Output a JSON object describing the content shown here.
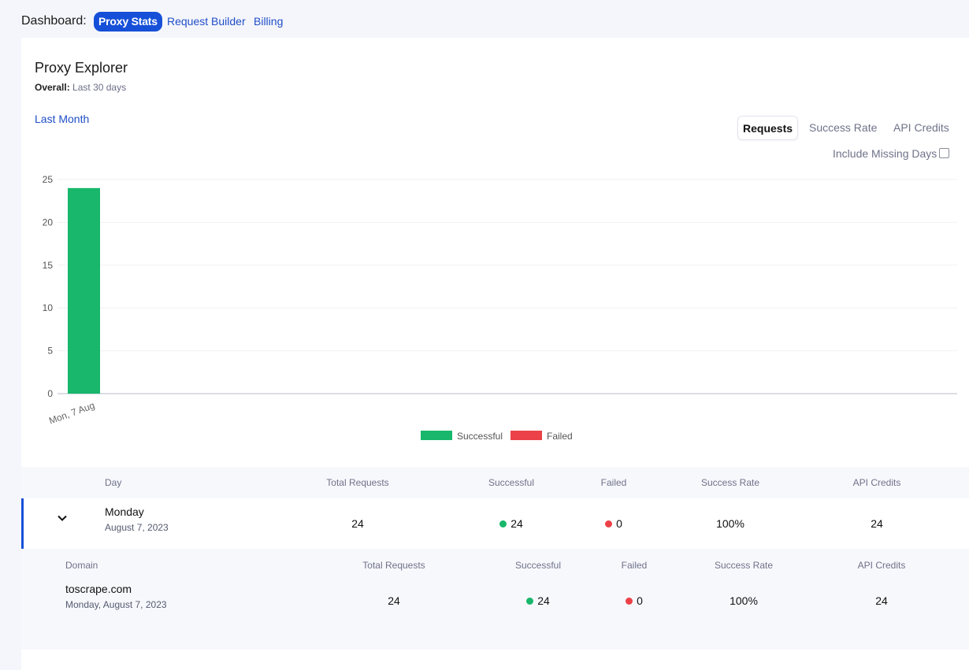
{
  "nav": {
    "label": "Dashboard:",
    "tabs": [
      "Proxy Stats",
      "Request Builder",
      "Billing"
    ]
  },
  "card": {
    "title": "Proxy Explorer",
    "overall_label": "Overall:",
    "overall_value": "Last 30 days",
    "period_link": "Last Month",
    "segments": [
      "Requests",
      "Success Rate",
      "API Credits"
    ],
    "include_missing_label": "Include Missing Days",
    "include_missing_checked": false
  },
  "colors": {
    "successful": "#18b76b",
    "failed": "#ec4148",
    "accent": "#1650d8"
  },
  "chart_data": {
    "type": "bar",
    "categories": [
      "Mon, 7 Aug"
    ],
    "series": [
      {
        "name": "Successful",
        "values": [
          24
        ]
      },
      {
        "name": "Failed",
        "values": [
          0
        ]
      }
    ],
    "ylim": [
      0,
      25
    ],
    "yticks": [
      "0",
      "5",
      "10",
      "15",
      "20",
      "25"
    ],
    "legend_position": "bottom-center",
    "grid": true
  },
  "table": {
    "headers": [
      "Day",
      "Total Requests",
      "Successful",
      "Failed",
      "Success Rate",
      "API Credits"
    ],
    "row": {
      "day": "Monday",
      "date": "August 7, 2023",
      "total": "24",
      "successful": "24",
      "failed": "0",
      "success_rate": "100%",
      "api_credits": "24"
    },
    "sub_headers": [
      "Domain",
      "Total Requests",
      "Successful",
      "Failed",
      "Success Rate",
      "API Credits"
    ],
    "sub_row": {
      "domain": "toscrape.com",
      "date": "Monday, August 7, 2023",
      "total": "24",
      "successful": "24",
      "failed": "0",
      "success_rate": "100%",
      "api_credits": "24"
    }
  }
}
